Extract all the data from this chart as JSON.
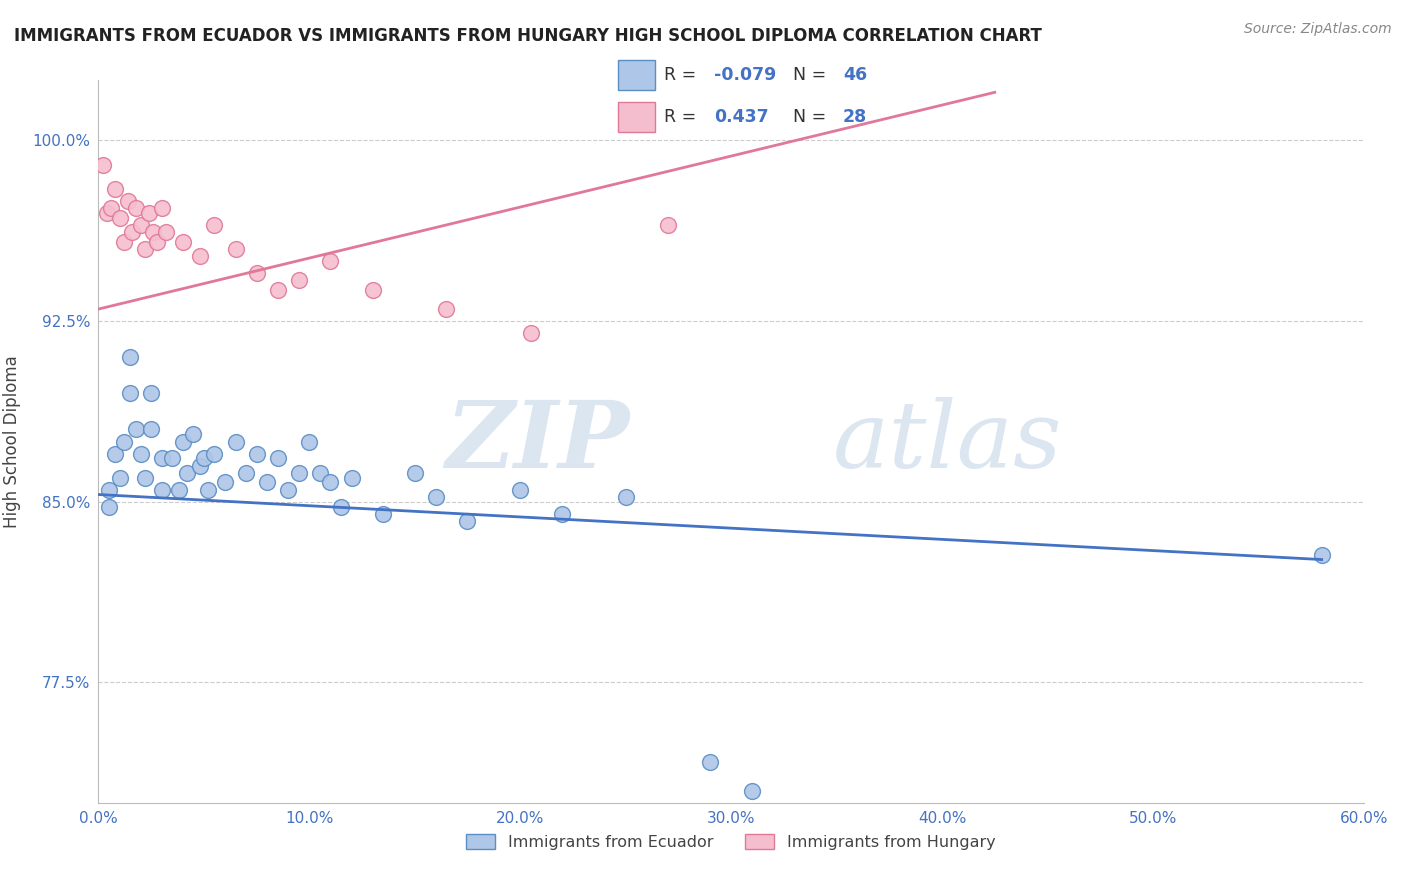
{
  "title": "IMMIGRANTS FROM ECUADOR VS IMMIGRANTS FROM HUNGARY HIGH SCHOOL DIPLOMA CORRELATION CHART",
  "source_text": "Source: ZipAtlas.com",
  "ylabel": "High School Diploma",
  "xlim": [
    0.0,
    0.6
  ],
  "ylim": [
    0.725,
    1.025
  ],
  "xtick_labels": [
    "0.0%",
    "",
    "10.0%",
    "",
    "20.0%",
    "",
    "30.0%",
    "",
    "40.0%",
    "",
    "50.0%",
    "",
    "60.0%"
  ],
  "xtick_values": [
    0.0,
    0.05,
    0.1,
    0.15,
    0.2,
    0.25,
    0.3,
    0.35,
    0.4,
    0.45,
    0.5,
    0.55,
    0.6
  ],
  "ytick_labels": [
    "77.5%",
    "85.0%",
    "92.5%",
    "100.0%"
  ],
  "ytick_values": [
    0.775,
    0.85,
    0.925,
    1.0
  ],
  "ecuador_color": "#aec6e8",
  "ecuador_edge_color": "#5b8ec4",
  "hungary_color": "#f5bece",
  "hungary_edge_color": "#e07898",
  "ecuador_R": -0.079,
  "ecuador_N": 46,
  "hungary_R": 0.437,
  "hungary_N": 28,
  "ecuador_line_color": "#4472c4",
  "hungary_line_color": "#e07898",
  "watermark_zip": "ZIP",
  "watermark_atlas": "atlas",
  "ecuador_x": [
    0.005,
    0.005,
    0.008,
    0.01,
    0.012,
    0.015,
    0.015,
    0.018,
    0.02,
    0.022,
    0.025,
    0.025,
    0.03,
    0.03,
    0.035,
    0.038,
    0.04,
    0.042,
    0.045,
    0.048,
    0.05,
    0.052,
    0.055,
    0.06,
    0.065,
    0.07,
    0.075,
    0.08,
    0.085,
    0.09,
    0.095,
    0.1,
    0.105,
    0.11,
    0.115,
    0.12,
    0.135,
    0.15,
    0.16,
    0.175,
    0.2,
    0.22,
    0.25,
    0.29,
    0.31,
    0.58
  ],
  "ecuador_y": [
    0.855,
    0.848,
    0.87,
    0.86,
    0.875,
    0.91,
    0.895,
    0.88,
    0.87,
    0.86,
    0.895,
    0.88,
    0.868,
    0.855,
    0.868,
    0.855,
    0.875,
    0.862,
    0.878,
    0.865,
    0.868,
    0.855,
    0.87,
    0.858,
    0.875,
    0.862,
    0.87,
    0.858,
    0.868,
    0.855,
    0.862,
    0.875,
    0.862,
    0.858,
    0.848,
    0.86,
    0.845,
    0.862,
    0.852,
    0.842,
    0.855,
    0.845,
    0.852,
    0.742,
    0.73,
    0.828
  ],
  "hungary_x": [
    0.002,
    0.004,
    0.006,
    0.008,
    0.01,
    0.012,
    0.014,
    0.016,
    0.018,
    0.02,
    0.022,
    0.024,
    0.026,
    0.028,
    0.03,
    0.032,
    0.04,
    0.048,
    0.055,
    0.065,
    0.075,
    0.085,
    0.095,
    0.11,
    0.13,
    0.165,
    0.205,
    0.27
  ],
  "hungary_y": [
    0.99,
    0.97,
    0.972,
    0.98,
    0.968,
    0.958,
    0.975,
    0.962,
    0.972,
    0.965,
    0.955,
    0.97,
    0.962,
    0.958,
    0.972,
    0.962,
    0.958,
    0.952,
    0.965,
    0.955,
    0.945,
    0.938,
    0.942,
    0.95,
    0.938,
    0.93,
    0.92,
    0.965
  ],
  "ecuador_trendline": [
    0.0,
    0.58,
    0.853,
    0.826
  ],
  "hungary_trendline": [
    0.0,
    0.425,
    0.93,
    1.02
  ]
}
